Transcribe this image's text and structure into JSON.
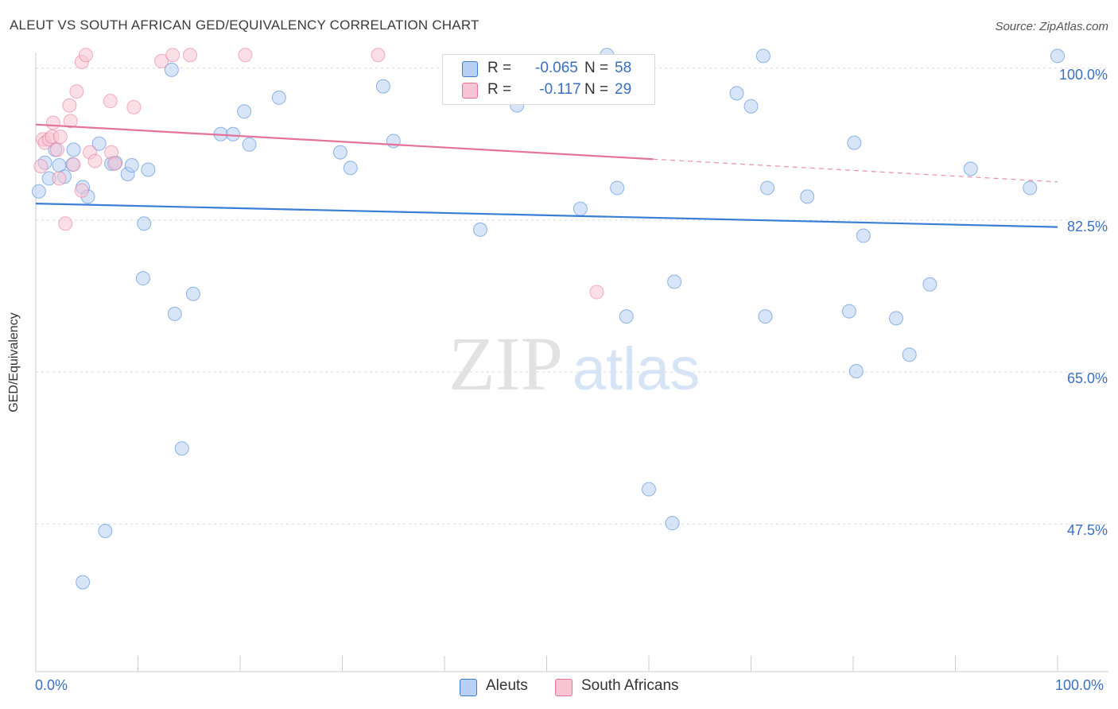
{
  "title": "ALEUT VS SOUTH AFRICAN GED/EQUIVALENCY CORRELATION CHART",
  "source": "Source: ZipAtlas.com",
  "watermark": {
    "zip": "ZIP",
    "atlas": "atlas"
  },
  "colors": {
    "blue": "#3a7fd5",
    "blue_fill": "#b8d0f3",
    "pink": "#e57399",
    "pink_fill": "#f7c4d4",
    "axis_text": "#3a6fc4",
    "grid": "#d9d9d9"
  },
  "legend": {
    "rows": [
      {
        "label": "R =",
        "r": "-0.065",
        "n_label": "N =",
        "n": "58"
      },
      {
        "label": "R =",
        "r": " -0.117",
        "n_label": "N =",
        "n": "29"
      }
    ]
  },
  "chart_data": {
    "type": "scatter",
    "title": "ALEUT VS SOUTH AFRICAN GED/EQUIVALENCY CORRELATION CHART",
    "xlabel": "",
    "ylabel": "GED/Equivalency",
    "xlim": [
      0,
      100
    ],
    "ylim": [
      30.5,
      101.8
    ],
    "x_tick_labels": [
      "0.0%",
      "100.0%"
    ],
    "y_ticks": [
      {
        "value": 100.0,
        "label": "100.0%"
      },
      {
        "value": 82.5,
        "label": "82.5%"
      },
      {
        "value": 65.0,
        "label": "65.0%"
      },
      {
        "value": 47.5,
        "label": "47.5%"
      }
    ],
    "series": [
      {
        "name": "Aleuts",
        "color": "#3a7fd5",
        "fill": "#b8d0f3",
        "trend": {
          "x": [
            0,
            100
          ],
          "y": [
            84.4,
            81.7
          ],
          "dashed_from": null
        },
        "points": [
          [
            0.3,
            85.8
          ],
          [
            0.9,
            89.1
          ],
          [
            1.3,
            87.3
          ],
          [
            1.9,
            90.6
          ],
          [
            2.3,
            88.8
          ],
          [
            2.8,
            87.5
          ],
          [
            3.6,
            88.9
          ],
          [
            3.7,
            90.6
          ],
          [
            4.6,
            86.3
          ],
          [
            5.1,
            85.2
          ],
          [
            6.2,
            91.3
          ],
          [
            7.4,
            89.0
          ],
          [
            7.8,
            89.1
          ],
          [
            9.0,
            87.8
          ],
          [
            9.4,
            88.8
          ],
          [
            11.0,
            88.3
          ],
          [
            10.6,
            82.1
          ],
          [
            10.5,
            75.8
          ],
          [
            13.3,
            99.8
          ],
          [
            13.6,
            71.7
          ],
          [
            14.3,
            56.2
          ],
          [
            15.4,
            74.0
          ],
          [
            18.1,
            92.4
          ],
          [
            19.3,
            92.4
          ],
          [
            20.4,
            95.0
          ],
          [
            20.9,
            91.2
          ],
          [
            23.8,
            96.6
          ],
          [
            29.8,
            90.3
          ],
          [
            30.8,
            88.5
          ],
          [
            34.0,
            97.9
          ],
          [
            35.0,
            91.6
          ],
          [
            43.5,
            81.4
          ],
          [
            47.1,
            95.7
          ],
          [
            53.3,
            83.8
          ],
          [
            55.9,
            101.5
          ],
          [
            56.9,
            86.2
          ],
          [
            57.8,
            71.4
          ],
          [
            60.0,
            51.5
          ],
          [
            62.3,
            47.6
          ],
          [
            62.5,
            75.4
          ],
          [
            68.6,
            97.1
          ],
          [
            70.0,
            95.6
          ],
          [
            71.2,
            101.4
          ],
          [
            71.4,
            71.4
          ],
          [
            71.6,
            86.2
          ],
          [
            75.5,
            85.2
          ],
          [
            79.6,
            72.0
          ],
          [
            80.1,
            91.4
          ],
          [
            80.3,
            65.1
          ],
          [
            81.0,
            80.7
          ],
          [
            84.2,
            71.2
          ],
          [
            85.5,
            67.0
          ],
          [
            87.5,
            75.1
          ],
          [
            91.5,
            88.4
          ],
          [
            97.3,
            86.2
          ],
          [
            100.0,
            101.4
          ],
          [
            6.8,
            46.7
          ],
          [
            4.6,
            40.8
          ]
        ]
      },
      {
        "name": "South Africans",
        "color": "#e57399",
        "fill": "#f7c4d4",
        "trend": {
          "x": [
            0,
            100
          ],
          "y": [
            93.5,
            86.9
          ],
          "solid_to": 60.4
        },
        "points": [
          [
            0.5,
            88.7
          ],
          [
            0.7,
            91.8
          ],
          [
            0.9,
            91.4
          ],
          [
            1.3,
            91.8
          ],
          [
            1.6,
            92.1
          ],
          [
            1.7,
            93.7
          ],
          [
            2.1,
            90.6
          ],
          [
            2.3,
            87.3
          ],
          [
            2.4,
            92.1
          ],
          [
            2.9,
            82.1
          ],
          [
            3.3,
            95.7
          ],
          [
            3.4,
            93.9
          ],
          [
            3.7,
            88.9
          ],
          [
            4.0,
            97.3
          ],
          [
            4.5,
            85.9
          ],
          [
            4.5,
            100.7
          ],
          [
            4.9,
            101.5
          ],
          [
            5.3,
            90.3
          ],
          [
            5.8,
            89.3
          ],
          [
            7.3,
            96.2
          ],
          [
            7.4,
            90.3
          ],
          [
            9.6,
            95.5
          ],
          [
            12.3,
            100.8
          ],
          [
            13.4,
            101.5
          ],
          [
            15.1,
            101.5
          ],
          [
            20.5,
            101.5
          ],
          [
            33.5,
            101.5
          ],
          [
            54.9,
            74.2
          ],
          [
            7.7,
            89.0
          ]
        ]
      }
    ]
  }
}
